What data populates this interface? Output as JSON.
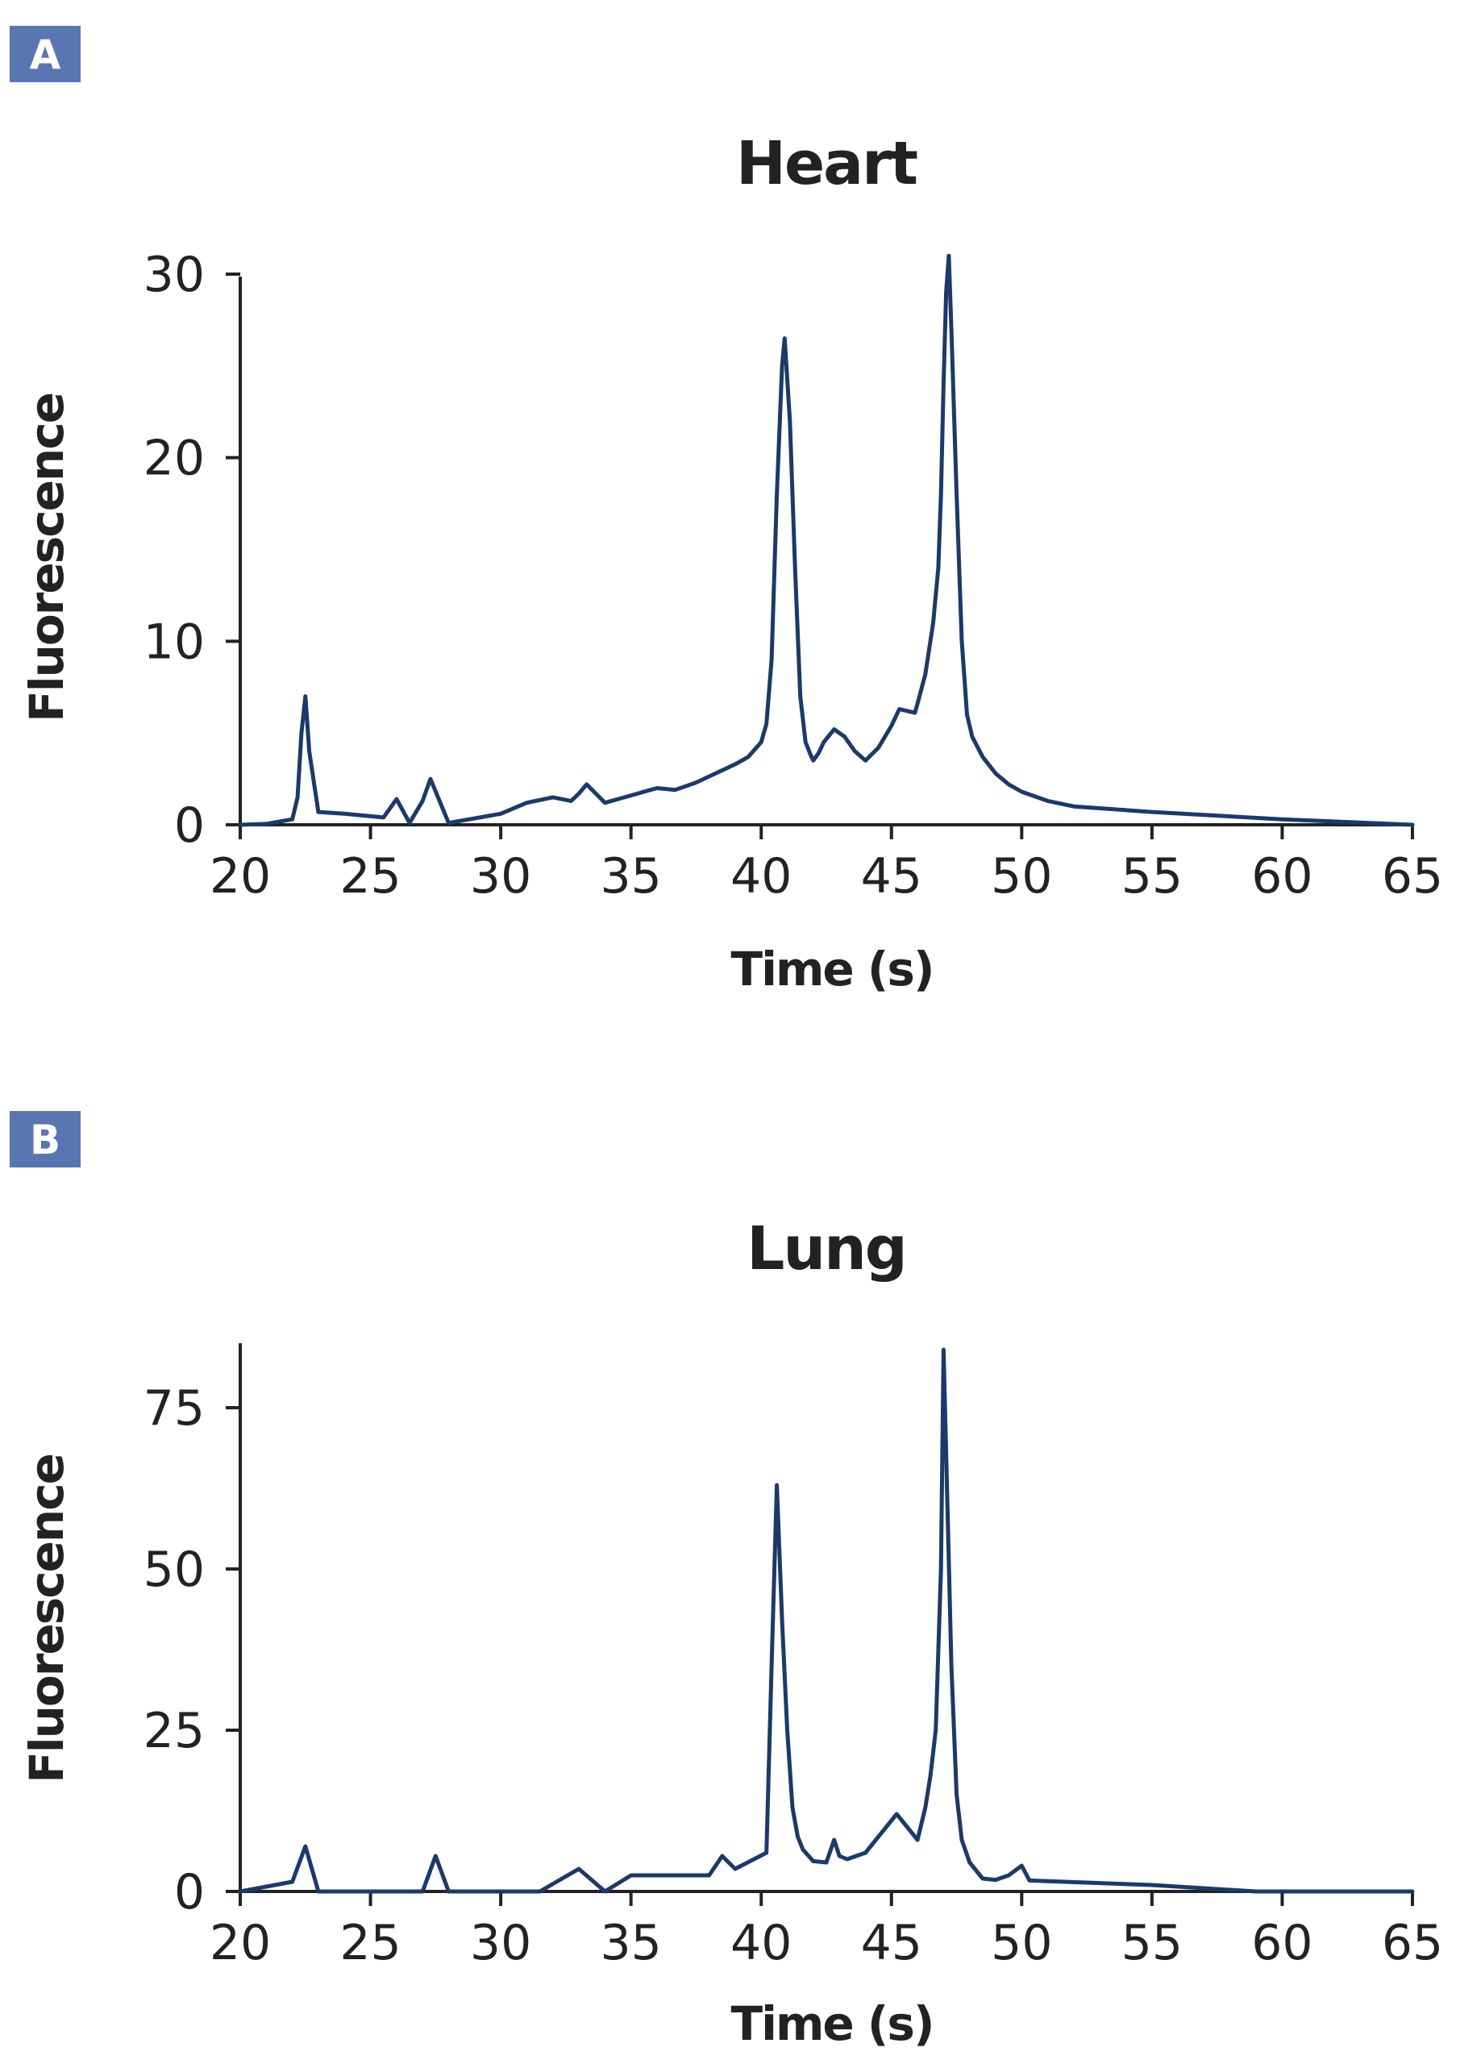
{
  "colors": {
    "series": "#1b3a6b",
    "badge": "#5a76b2",
    "axis": "#222222"
  },
  "chart_data": [
    {
      "panel_label": "A",
      "type": "line",
      "title": "Heart",
      "xlabel": "Time (s)",
      "ylabel": "Fluorescence",
      "xlim": [
        20,
        65
      ],
      "ylim": [
        0,
        30
      ],
      "x_ticks": [
        20,
        25,
        30,
        35,
        40,
        45,
        50,
        55,
        60,
        65
      ],
      "y_ticks": [
        0,
        10,
        20,
        30
      ],
      "grid": false,
      "series": [
        {
          "x": [
            20,
            21,
            22,
            22.2,
            22.35,
            22.5,
            22.65,
            23,
            24,
            25.5,
            26,
            26.5,
            27,
            27.3,
            28,
            30,
            31,
            32,
            32.7,
            33,
            33.3,
            34,
            35,
            35.5,
            36,
            36.7,
            37.5,
            39,
            39.5,
            40,
            40.2,
            40.4,
            40.6,
            40.8,
            40.9,
            41.1,
            41.3,
            41.5,
            41.7,
            41.9,
            42,
            42.2,
            42.4,
            42.8,
            43.2,
            43.6,
            44,
            44.5,
            45,
            45.3,
            45.6,
            45.9,
            46,
            46.3,
            46.6,
            46.8,
            46.9,
            47,
            47.1,
            47.2,
            47.3,
            47.5,
            47.7,
            47.9,
            48.1,
            48.5,
            49,
            49.5,
            50,
            51,
            52,
            55,
            60,
            65
          ],
          "y": [
            0,
            0.05,
            0.3,
            1.5,
            5,
            7,
            4,
            0.7,
            0.6,
            0.4,
            1.4,
            0.1,
            1.3,
            2.5,
            0.1,
            0.6,
            1.2,
            1.5,
            1.3,
            1.7,
            2.2,
            1.2,
            1.6,
            1.8,
            2.0,
            1.9,
            2.3,
            3.3,
            3.7,
            4.5,
            5.5,
            9,
            18,
            25,
            26.5,
            22,
            14,
            7,
            4.5,
            3.8,
            3.5,
            3.9,
            4.5,
            5.2,
            4.8,
            4.0,
            3.5,
            4.2,
            5.4,
            6.3,
            6.2,
            6.1,
            6.6,
            8.2,
            11,
            14,
            18,
            24,
            29,
            31,
            27,
            18,
            10,
            6,
            4.8,
            3.7,
            2.8,
            2.2,
            1.8,
            1.3,
            1.0,
            0.7,
            0.3,
            0
          ]
        }
      ]
    },
    {
      "panel_label": "B",
      "type": "line",
      "title": "Lung",
      "xlabel": "Time (s)",
      "ylabel": "Fluorescence",
      "xlim": [
        20,
        65
      ],
      "ylim": [
        0,
        85
      ],
      "x_ticks": [
        20,
        25,
        30,
        35,
        40,
        45,
        50,
        55,
        60,
        65
      ],
      "y_ticks": [
        0,
        25,
        50,
        75
      ],
      "grid": false,
      "series": [
        {
          "x": [
            20,
            22,
            22.5,
            23,
            27,
            27.5,
            28,
            31.5,
            33,
            34,
            35,
            38,
            38.5,
            39,
            40.2,
            40.4,
            40.6,
            40.8,
            41,
            41.2,
            41.4,
            41.6,
            42,
            42.5,
            42.8,
            43,
            43.3,
            44,
            44.8,
            45.2,
            45.6,
            46,
            46.3,
            46.5,
            46.7,
            46.9,
            47,
            47.1,
            47.3,
            47.5,
            47.7,
            48,
            48.5,
            49,
            49.5,
            50,
            50.3,
            55,
            59,
            65
          ],
          "y": [
            0,
            1.5,
            7,
            0,
            0,
            5.5,
            0,
            0,
            3.5,
            0,
            2.5,
            2.5,
            5.5,
            3.5,
            6,
            35,
            63,
            42,
            25,
            13,
            8.5,
            6.5,
            4.7,
            4.5,
            8,
            5.5,
            5,
            6,
            10,
            12,
            10,
            8,
            13,
            18,
            25,
            50,
            84,
            68,
            35,
            15,
            8,
            4.5,
            2,
            1.8,
            2.5,
            4,
            1.7,
            1,
            0,
            0
          ]
        }
      ]
    }
  ]
}
